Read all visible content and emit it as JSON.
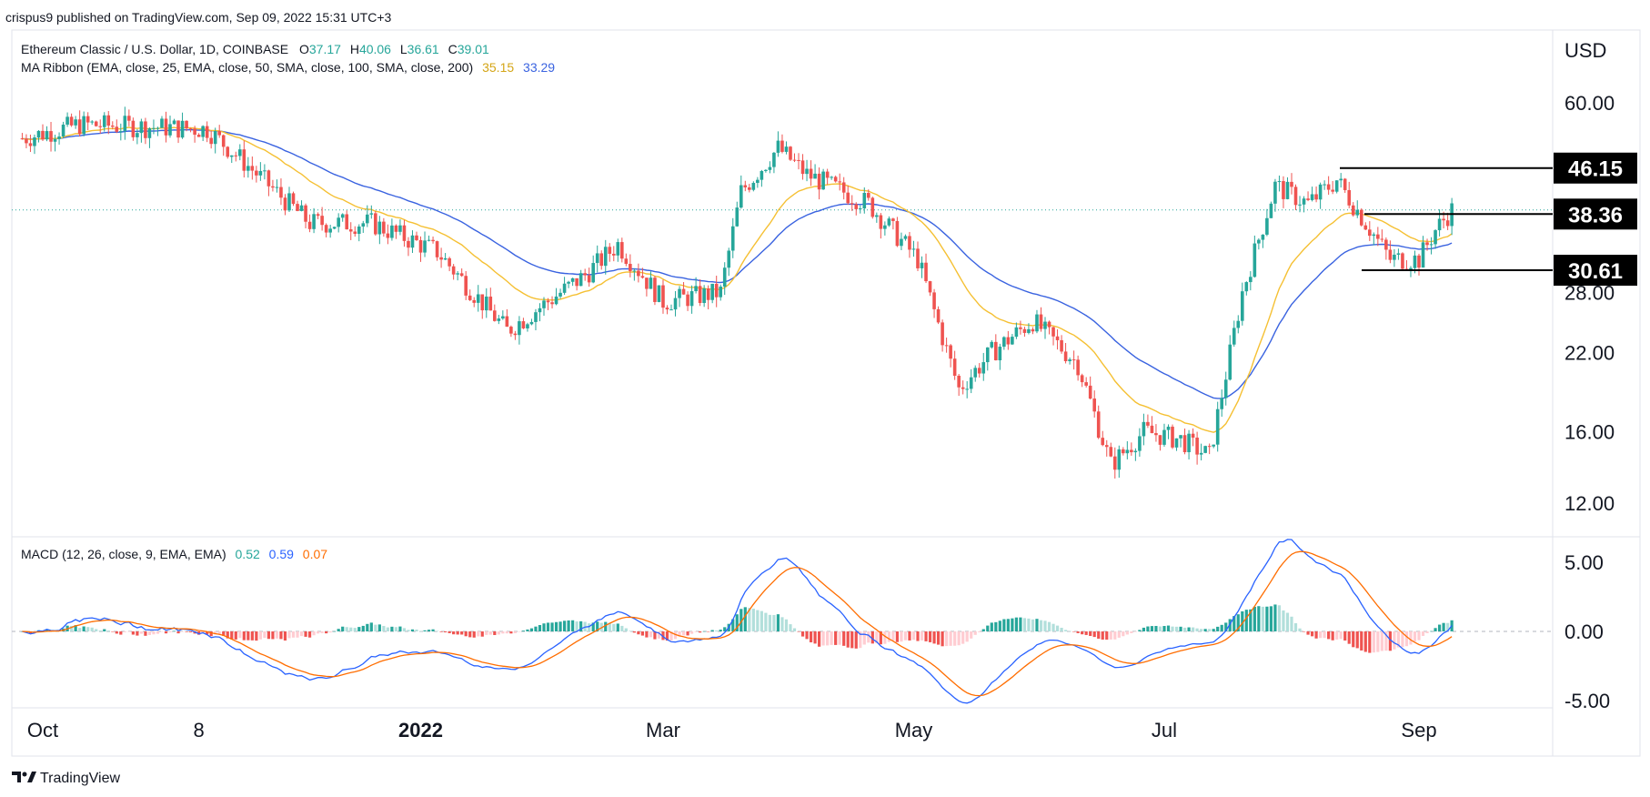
{
  "header": {
    "published": "crispus9 published on TradingView.com, Sep 09, 2022 15:31 UTC+3"
  },
  "footer": {
    "brand": "TradingView",
    "logo_icon": "tradingview-logo-icon"
  },
  "legend": {
    "symbol": "Ethereum Classic / U.S. Dollar, 1D, COINBASE",
    "ohlc": [
      {
        "label": "O",
        "value": "37.17"
      },
      {
        "label": "H",
        "value": "40.06"
      },
      {
        "label": "L",
        "value": "36.61"
      },
      {
        "label": "C",
        "value": "39.01"
      }
    ],
    "ma_ribbon": {
      "label": "MA Ribbon (EMA, close, 25, EMA, close, 50, SMA, close, 100, SMA, close, 200)",
      "value1": "35.15",
      "value2": "33.29"
    },
    "macd": {
      "label": "MACD (12, 26, close, 9, EMA, EMA)",
      "hist": "0.52",
      "macd": "0.59",
      "signal": "0.07"
    }
  },
  "colors": {
    "up": "#26a69a",
    "down": "#ef5350",
    "ema25": "#f5c033",
    "ema50": "#3a63e0",
    "macd_line": "#2962ff",
    "signal_line": "#ff6d00",
    "hist_up_strong": "#26a69a",
    "hist_up_weak": "#b2dfdb",
    "hist_down_strong": "#ef5350",
    "hist_down_weak": "#ffcdd2"
  },
  "chart_data": [
    {
      "type": "candlestick",
      "title": "Ethereum Classic / U.S. Dollar, 1D, COINBASE",
      "yunit": "USD",
      "log_scale": true,
      "ylim": [
        10.8,
        75
      ],
      "y_ticks": [
        "60.00",
        "46.15",
        "38.36",
        "28.00",
        "22.00",
        "16.00",
        "12.00"
      ],
      "x_ticks": [
        "Oct",
        "8",
        "2022",
        "Mar",
        "May",
        "Jul",
        "Sep"
      ],
      "annotations": [
        {
          "label": "46.15",
          "value": 46.15
        },
        {
          "label": "38.36",
          "value": 38.36
        },
        {
          "label": "30.61",
          "value": 30.61
        }
      ],
      "price_keypoints": [
        [
          "2021-09-26",
          52
        ],
        [
          "2021-10-10",
          55
        ],
        [
          "2021-11-10",
          54
        ],
        [
          "2021-11-18",
          48
        ],
        [
          "2021-12-05",
          37
        ],
        [
          "2021-12-20",
          37
        ],
        [
          "2022-01-05",
          33
        ],
        [
          "2022-01-22",
          24
        ],
        [
          "2022-02-10",
          30
        ],
        [
          "2022-02-18",
          34
        ],
        [
          "2022-03-01",
          27
        ],
        [
          "2022-03-15",
          28
        ],
        [
          "2022-03-20",
          42
        ],
        [
          "2022-03-29",
          50
        ],
        [
          "2022-04-05",
          45
        ],
        [
          "2022-04-20",
          40
        ],
        [
          "2022-05-02",
          32
        ],
        [
          "2022-05-12",
          19
        ],
        [
          "2022-05-20",
          22
        ],
        [
          "2022-05-30",
          25
        ],
        [
          "2022-06-10",
          21
        ],
        [
          "2022-06-18",
          14
        ],
        [
          "2022-06-26",
          16
        ],
        [
          "2022-07-05",
          15.5
        ],
        [
          "2022-07-12",
          14.5
        ],
        [
          "2022-07-20",
          28
        ],
        [
          "2022-07-28",
          43
        ],
        [
          "2022-08-05",
          40
        ],
        [
          "2022-08-12",
          44
        ],
        [
          "2022-08-18",
          38
        ],
        [
          "2022-08-25",
          32
        ],
        [
          "2022-09-01",
          32
        ],
        [
          "2022-09-05",
          36
        ],
        [
          "2022-09-09",
          39
        ]
      ]
    },
    {
      "type": "line",
      "title": "MACD (12, 26, close, 9, EMA, EMA)",
      "y_ticks": [
        "5.00",
        "0.00",
        "-5.00"
      ],
      "series": [
        {
          "name": "Histogram",
          "value": 0.52
        },
        {
          "name": "MACD",
          "value": 0.59
        },
        {
          "name": "Signal",
          "value": 0.07
        }
      ]
    }
  ]
}
